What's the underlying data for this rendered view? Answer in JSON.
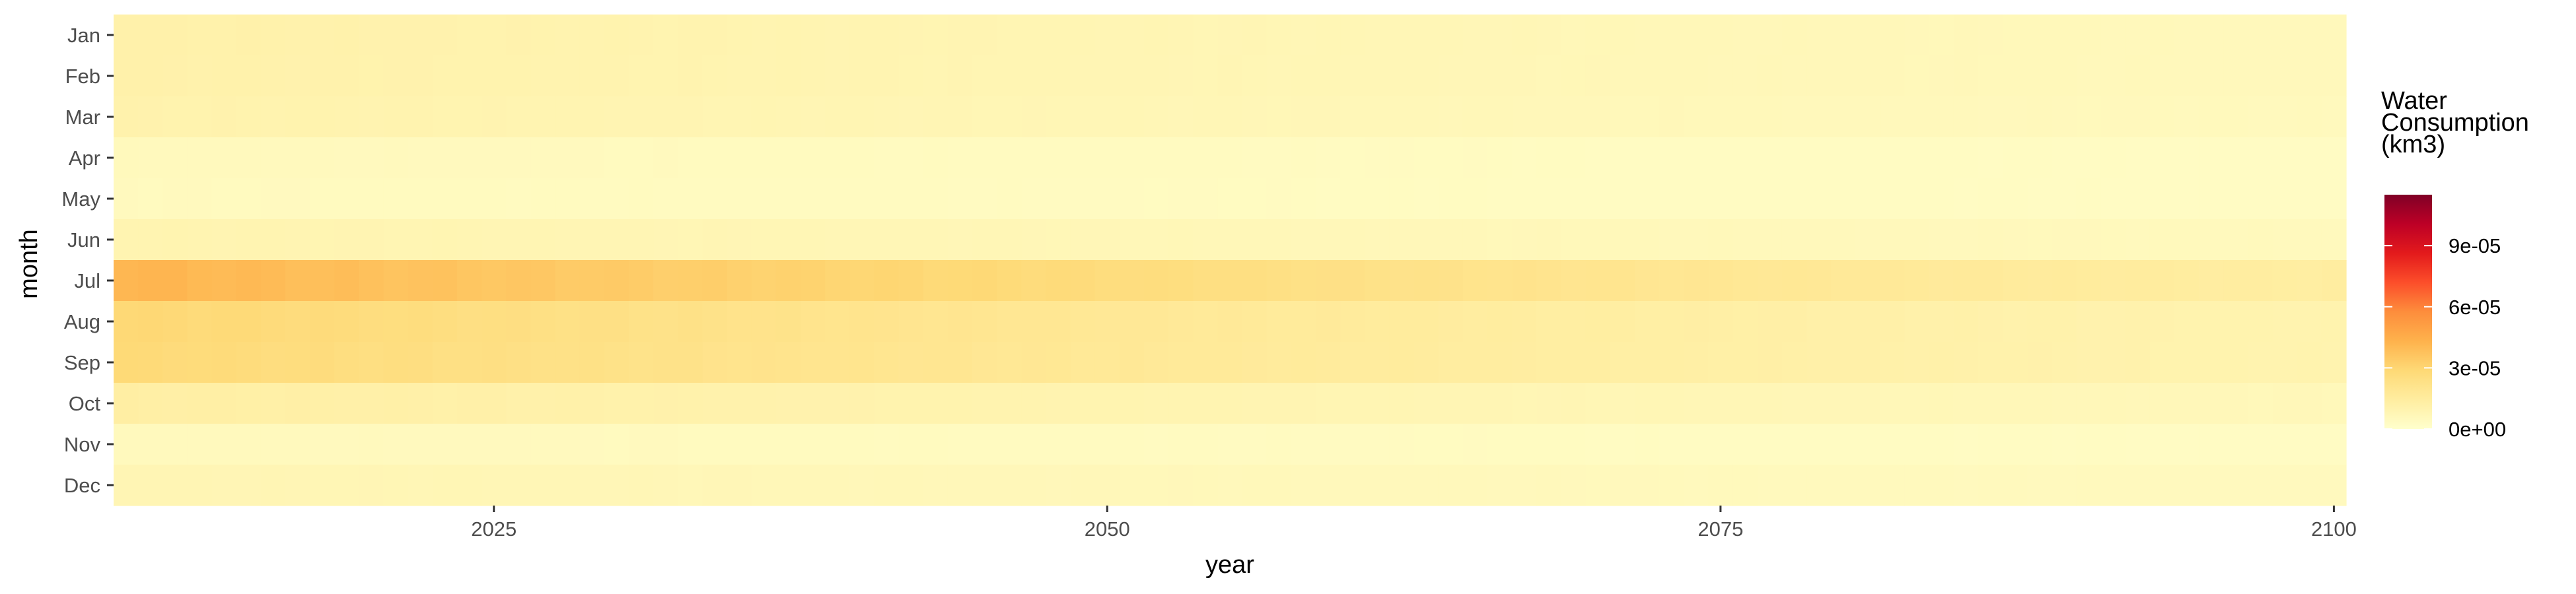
{
  "chart_data": {
    "type": "heatmap",
    "xlabel": "year",
    "ylabel": "month",
    "x_range": [
      2010,
      2100
    ],
    "x_ticks": [
      2025,
      2050,
      2075,
      2100
    ],
    "x_tick_labels": [
      "2025",
      "2050",
      "2075",
      "2100"
    ],
    "months": [
      "Jan",
      "Feb",
      "Mar",
      "Apr",
      "May",
      "Jun",
      "Jul",
      "Aug",
      "Sep",
      "Oct",
      "Nov",
      "Dec"
    ],
    "month_profiles": {
      "Jan": {
        "start": 1.12e-05,
        "end": 5.5e-06
      },
      "Feb": {
        "start": 1.1e-05,
        "end": 5.5e-06
      },
      "Mar": {
        "start": 1.02e-05,
        "end": 5e-06
      },
      "Apr": {
        "start": 5e-06,
        "end": 3e-06
      },
      "May": {
        "start": 4.5e-06,
        "end": 3e-06
      },
      "Jun": {
        "start": 9e-06,
        "end": 5e-06
      },
      "Jul": {
        "start": 4.2e-05,
        "end": 1.4e-05
      },
      "Aug": {
        "start": 2.9e-05,
        "end": 9.5e-06
      },
      "Sep": {
        "start": 2.8e-05,
        "end": 9.5e-06
      },
      "Oct": {
        "start": 1.3e-05,
        "end": 6e-06
      },
      "Nov": {
        "start": 5e-06,
        "end": 3e-06
      },
      "Dec": {
        "start": 8e-06,
        "end": 4.5e-06
      }
    },
    "legend": {
      "title_lines": [
        "Water",
        "Consumption",
        "(km3)"
      ],
      "min": 0,
      "max": 0.000115,
      "ticks": [
        0,
        3e-05,
        6e-05,
        9e-05
      ],
      "tick_labels": [
        "0e+00",
        "3e-05",
        "6e-05",
        "9e-05"
      ],
      "placement": "right"
    },
    "colormap": [
      "#ffffcc",
      "#ffeda0",
      "#fed976",
      "#feb24c",
      "#fd8d3c",
      "#fc4e2a",
      "#e31a1c",
      "#bd0026",
      "#800026"
    ]
  }
}
